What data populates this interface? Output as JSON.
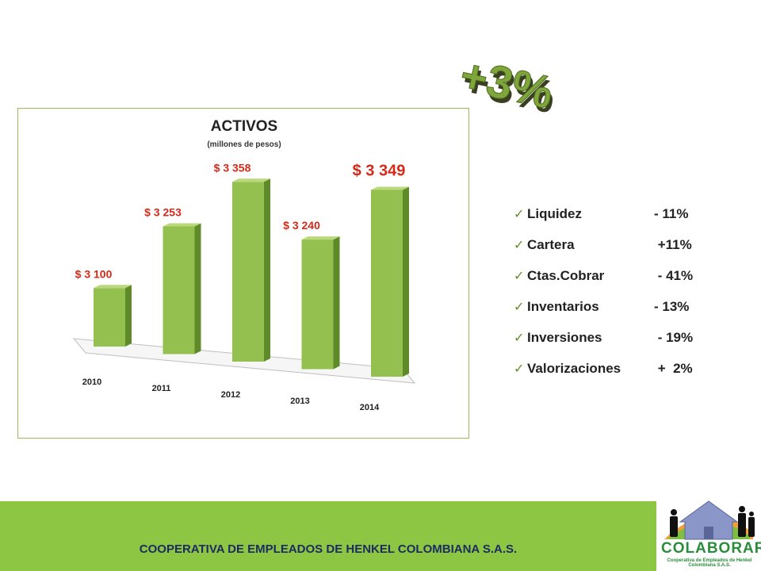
{
  "highlight": {
    "text": "+3%"
  },
  "chart_data": {
    "type": "bar",
    "title": "ACTIVOS",
    "subtitle": "(millones de pesos)",
    "categories": [
      "2010",
      "2011",
      "2012",
      "2013",
      "2014"
    ],
    "values": [
      3100,
      3253,
      3358,
      3240,
      3349
    ],
    "value_labels": [
      "$ 3 100",
      "$ 3 253",
      "$ 3 358",
      "$ 3 240",
      "$ 3 349"
    ],
    "emphasized_index": 4,
    "grid": false,
    "legend": "none",
    "colors": {
      "bar": "#93c04e",
      "bar_top": "#b9d97a",
      "bar_side": "#5f8a2a",
      "label": "#d42a1a"
    }
  },
  "kpis": [
    {
      "label": "Liquidez",
      "value": "- 11%"
    },
    {
      "label": "Cartera",
      "value": " +11%"
    },
    {
      "label": "Ctas.Cobrar",
      "value": " - 41%"
    },
    {
      "label": "Inventarios",
      "value": "- 13%"
    },
    {
      "label": "Inversiones",
      "value": " - 19%"
    },
    {
      "label": "Valorizaciones",
      "value": " +  2%"
    }
  ],
  "footer": {
    "text": "COOPERATIVA DE EMPLEADOS DE HENKEL COLOMBIANA S.A.S."
  },
  "logo": {
    "name": "COLABORAR",
    "tagline": "Cooperativa de Empleados de Henkel Colombiana S.A.S."
  },
  "colors": {
    "accent": "#8dc642",
    "footer_text": "#1e2b63",
    "check": "#5f8f28"
  }
}
